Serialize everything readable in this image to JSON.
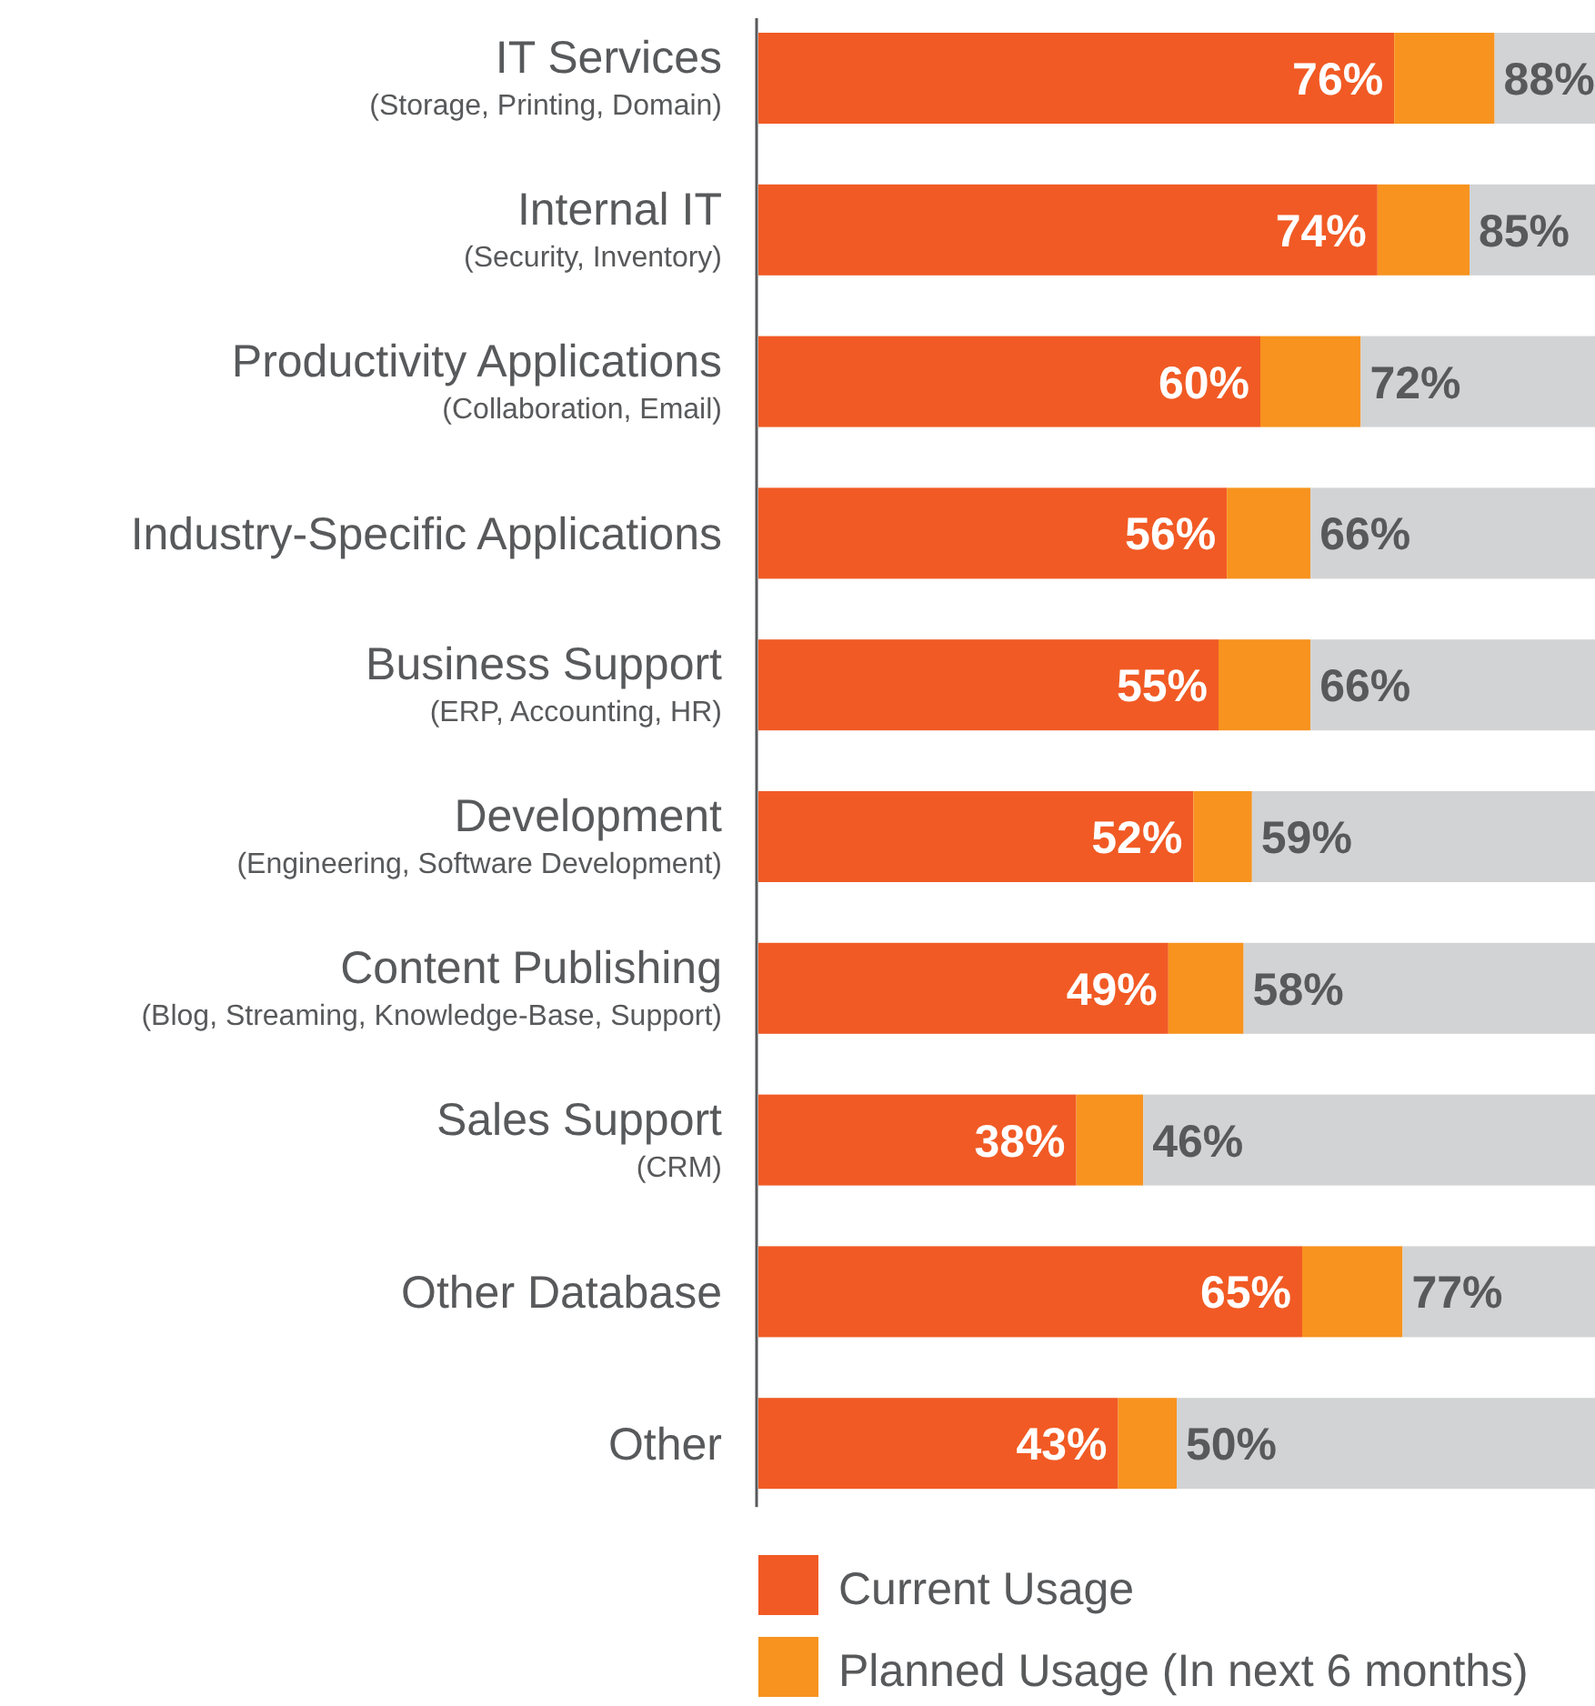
{
  "chart_data": {
    "type": "bar",
    "orientation": "horizontal",
    "stacked": true,
    "xlim": [
      0,
      100
    ],
    "legend": "bottom",
    "categories": [
      "IT Services\n(Storage, Printing, Domain)",
      "Internal IT\n(Security, Inventory)",
      "Productivity Applications\n(Collaboration, Email)",
      "Industry-Specific Applications",
      "Business Support\n(ERP, Accounting, HR)",
      "Development\n(Engineering, Software Development)",
      "Content Publishing\n(Blog, Streaming, Knowledge-Base, Support)",
      "Sales Support\n(CRM)",
      "Other Database",
      "Other"
    ],
    "series": [
      {
        "name": "Current Usage",
        "color": "#f15a24",
        "values": [
          76,
          74,
          60,
          56,
          55,
          52,
          49,
          38,
          65,
          43
        ],
        "value_labels": [
          "76%",
          "74%",
          "60%",
          "56%",
          "55%",
          "52%",
          "49%",
          "38%",
          "65%",
          "43%"
        ]
      },
      {
        "name": "Planned Usage (In next 6 months)",
        "color": "#f7931e",
        "values": [
          12,
          11,
          12,
          10,
          11,
          7,
          9,
          8,
          12,
          7
        ]
      },
      {
        "color": "#d1d3d4",
        "values": [
          12,
          15,
          28,
          34,
          34,
          41,
          42,
          54,
          23,
          50
        ]
      }
    ],
    "annotations": [
      {
        "text": "88%",
        "x": 88,
        "y": "IT Services\n(Storage, Printing, Domain)"
      },
      {
        "text": "85%",
        "x": 85,
        "y": "Internal IT\n(Security, Inventory)"
      },
      {
        "text": "72%",
        "x": 72,
        "y": "Productivity Applications\n(Collaboration, Email)"
      },
      {
        "text": "66%",
        "x": 66,
        "y": "Industry-Specific Applications"
      },
      {
        "text": "66%",
        "x": 66,
        "y": "Business Support\n(ERP, Accounting, HR)"
      },
      {
        "text": "59%",
        "x": 59,
        "y": "Development\n(Engineering, Software Development)"
      },
      {
        "text": "58%",
        "x": 58,
        "y": "Content Publishing\n(Blog, Streaming, Knowledge-Base, Support)"
      },
      {
        "text": "46%",
        "x": 46,
        "y": "Sales Support\n(CRM)"
      },
      {
        "text": "77%",
        "x": 77,
        "y": "Other Database"
      },
      {
        "text": "50%",
        "x": 50,
        "y": "Other"
      }
    ]
  }
}
